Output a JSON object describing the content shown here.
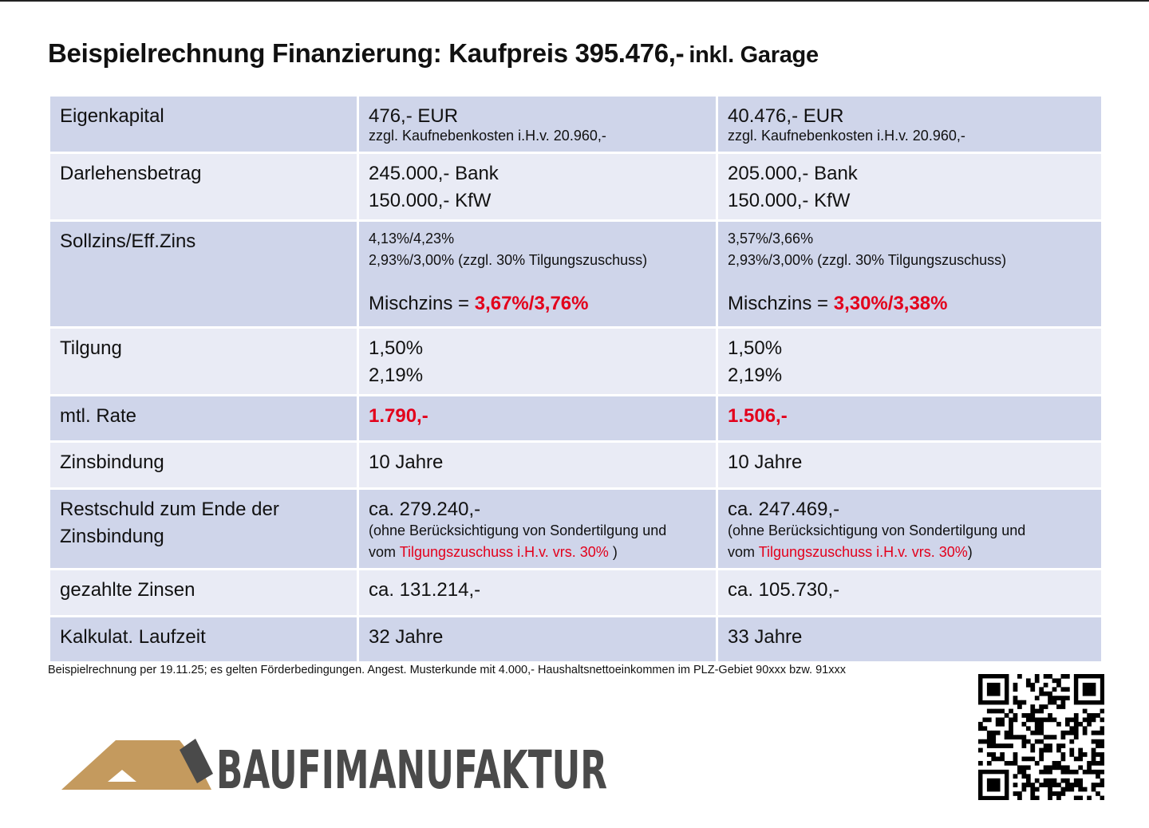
{
  "header": {
    "title": "Beispielrechnung Finanzierung: Kaufpreis 395.476,-",
    "title_suffix": "inkl. Garage"
  },
  "table": {
    "rows": [
      [
        "Eigenkapital",
        [
          "476,- EUR",
          "zzgl. Kaufnebenkosten i.H.v. 20.960,-"
        ],
        [
          "40.476,- EUR",
          "zzgl. Kaufnebenkosten i.H.v. 20.960,-"
        ]
      ],
      [
        "Darlehensbetrag",
        [
          "245.000,- Bank",
          "150.000,- KfW"
        ],
        [
          "205.000,- Bank",
          "150.000,- KfW"
        ]
      ],
      [
        "Sollzins/Eff.Zins",
        [
          "4,13%/4,23%",
          "2,93%/3,00% (zzgl. 30% Tilgungszuschuss)",
          "Mischzins =",
          "3,67%/3,76%"
        ],
        [
          "3,57%/3,66%",
          "2,93%/3,00% (zzgl. 30% Tilgungszuschuss)",
          "Mischzins =",
          "3,30%/3,38%"
        ]
      ],
      [
        "Tilgung",
        [
          "1,50%",
          "2,19%"
        ],
        [
          "1,50%",
          "2,19%"
        ]
      ],
      [
        "mtl. Rate",
        [
          "1.790,-"
        ],
        [
          "1.506,-"
        ]
      ],
      [
        "Zinsbindung",
        [
          "10 Jahre"
        ],
        [
          "10 Jahre"
        ]
      ],
      [
        "Restschuld zum Ende der Zinsbindung",
        [
          "ca. 279.240,-",
          "(ohne Berücksichtigung von Sondertilgung und",
          "vom",
          "Tilgungszuschuss i.H.v. vrs. 30%",
          ")"
        ],
        [
          "ca. 247.469,-",
          "(ohne Berücksichtigung von Sondertilgung und",
          "vom",
          "Tilgungszuschuss i.H.v. vrs. 30%",
          ")"
        ]
      ],
      [
        "gezahlte Zinsen",
        [
          "ca. 131.214,-"
        ],
        [
          "ca. 105.730,-"
        ]
      ],
      [
        "Kalkulat. Laufzeit",
        [
          "32 Jahre"
        ],
        [
          "33 Jahre"
        ]
      ]
    ]
  },
  "footnote": "Beispielrechnung per 19.11.25; es gelten Förderbedingungen. Angest. Musterkunde mit 4.000,- Haushaltsnettoeinkommen im PLZ-Gebiet 90xxx bzw. 91xxx",
  "logo": "BAUFIMANUFAKTUR"
}
